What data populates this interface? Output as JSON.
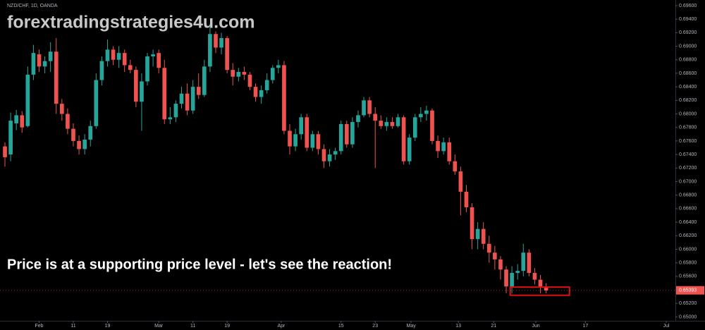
{
  "chart_data": {
    "type": "candlestick",
    "title": "NZD/CHF, 1D, OANDA",
    "watermark": "forextradingstrategies4u.com",
    "annotation": "Price is at a supporting price level  - let's see the reaction!",
    "up_color": "#26a69a",
    "down_color": "#ef5350",
    "open": [
      0.6752,
      0.674,
      0.6786,
      0.6798,
      0.6782,
      0.6858,
      0.6888,
      0.687,
      0.6878,
      0.6892,
      0.6815,
      0.68,
      0.6778,
      0.676,
      0.6748,
      0.6762,
      0.6782,
      0.685,
      0.6878,
      0.6895,
      0.688,
      0.689,
      0.6872,
      0.6865,
      0.6818,
      0.6848,
      0.6885,
      0.689,
      0.6868,
      0.6792,
      0.6795,
      0.6815,
      0.683,
      0.6805,
      0.684,
      0.6828,
      0.687,
      0.6918,
      0.6898,
      0.6912,
      0.6865,
      0.6855,
      0.6862,
      0.6858,
      0.684,
      0.6825,
      0.6835,
      0.685,
      0.6868,
      0.6872,
      0.6775,
      0.6752,
      0.677,
      0.6795,
      0.675,
      0.677,
      0.6748,
      0.673,
      0.674,
      0.6745,
      0.6785,
      0.6755,
      0.6788,
      0.6798,
      0.682,
      0.68,
      0.679,
      0.6782,
      0.6788,
      0.6782,
      0.6795,
      0.673,
      0.6765,
      0.6795,
      0.68,
      0.6805,
      0.676,
      0.6745,
      0.6758,
      0.673,
      0.6715,
      0.6685,
      0.6662,
      0.6615,
      0.663,
      0.6608,
      0.6595,
      0.6585,
      0.657,
      0.6545,
      0.6565,
      0.6568,
      0.6595,
      0.6565,
      0.6555,
      0.6545
    ],
    "high": [
      0.6758,
      0.6802,
      0.6806,
      0.6804,
      0.687,
      0.6902,
      0.6895,
      0.6885,
      0.6906,
      0.6912,
      0.6822,
      0.6808,
      0.6786,
      0.6768,
      0.677,
      0.679,
      0.686,
      0.6885,
      0.691,
      0.69,
      0.69,
      0.6895,
      0.688,
      0.687,
      0.686,
      0.689,
      0.6895,
      0.6895,
      0.688,
      0.681,
      0.682,
      0.684,
      0.6845,
      0.685,
      0.686,
      0.688,
      0.693,
      0.6922,
      0.692,
      0.6915,
      0.6875,
      0.6868,
      0.687,
      0.6862,
      0.6845,
      0.6842,
      0.686,
      0.6872,
      0.688,
      0.6878,
      0.6785,
      0.6778,
      0.68,
      0.68,
      0.6775,
      0.6775,
      0.6755,
      0.6748,
      0.675,
      0.679,
      0.679,
      0.6795,
      0.6805,
      0.6825,
      0.6825,
      0.681,
      0.6798,
      0.6795,
      0.6795,
      0.68,
      0.6798,
      0.677,
      0.68,
      0.681,
      0.6812,
      0.6808,
      0.6768,
      0.6765,
      0.6765,
      0.674,
      0.6722,
      0.6695,
      0.6668,
      0.664,
      0.664,
      0.662,
      0.6605,
      0.659,
      0.6575,
      0.6575,
      0.6578,
      0.6608,
      0.66,
      0.6572,
      0.6562,
      0.655
    ],
    "low": [
      0.6722,
      0.673,
      0.6776,
      0.6772,
      0.678,
      0.685,
      0.6862,
      0.686,
      0.6862,
      0.68,
      0.679,
      0.677,
      0.6752,
      0.674,
      0.674,
      0.6752,
      0.6778,
      0.6842,
      0.687,
      0.6872,
      0.6868,
      0.6862,
      0.686,
      0.681,
      0.6775,
      0.6842,
      0.687,
      0.686,
      0.6785,
      0.6785,
      0.6788,
      0.6808,
      0.6798,
      0.68,
      0.6822,
      0.6825,
      0.6862,
      0.689,
      0.6888,
      0.686,
      0.6842,
      0.6848,
      0.685,
      0.6835,
      0.6818,
      0.6815,
      0.683,
      0.6845,
      0.686,
      0.677,
      0.674,
      0.6745,
      0.6762,
      0.6745,
      0.6745,
      0.674,
      0.672,
      0.6722,
      0.6732,
      0.674,
      0.675,
      0.675,
      0.678,
      0.6795,
      0.6795,
      0.672,
      0.6778,
      0.6775,
      0.6778,
      0.678,
      0.6725,
      0.6725,
      0.676,
      0.6788,
      0.679,
      0.6755,
      0.6735,
      0.674,
      0.6725,
      0.671,
      0.665,
      0.6655,
      0.66,
      0.66,
      0.66,
      0.658,
      0.657,
      0.6555,
      0.6535,
      0.6535,
      0.6555,
      0.656,
      0.656,
      0.6548,
      0.6535,
      0.6535
    ],
    "close": [
      0.6736,
      0.679,
      0.6798,
      0.678,
      0.6858,
      0.689,
      0.687,
      0.6878,
      0.6892,
      0.6815,
      0.68,
      0.6778,
      0.676,
      0.6748,
      0.6762,
      0.6782,
      0.685,
      0.6878,
      0.6895,
      0.688,
      0.689,
      0.6872,
      0.6865,
      0.6818,
      0.6848,
      0.6885,
      0.6888,
      0.6868,
      0.6792,
      0.6795,
      0.6815,
      0.683,
      0.6805,
      0.684,
      0.6828,
      0.687,
      0.6918,
      0.6898,
      0.6912,
      0.6865,
      0.6855,
      0.6862,
      0.6858,
      0.684,
      0.6825,
      0.6835,
      0.685,
      0.6868,
      0.6872,
      0.6775,
      0.6752,
      0.677,
      0.6795,
      0.675,
      0.677,
      0.6748,
      0.673,
      0.674,
      0.6745,
      0.6785,
      0.6755,
      0.6788,
      0.6798,
      0.682,
      0.68,
      0.679,
      0.6782,
      0.6788,
      0.6782,
      0.6795,
      0.673,
      0.6765,
      0.6795,
      0.68,
      0.6805,
      0.676,
      0.6745,
      0.6758,
      0.673,
      0.6715,
      0.6685,
      0.6662,
      0.6615,
      0.663,
      0.6608,
      0.6595,
      0.6585,
      0.657,
      0.6545,
      0.6565,
      0.6568,
      0.6595,
      0.6565,
      0.6555,
      0.6545,
      0.6539
    ],
    "last_price": 0.65393,
    "support_zone": {
      "low": 0.6532,
      "high": 0.6544,
      "x": [
        88.7,
        99.1
      ],
      "color": "#e01010"
    },
    "xlim": [
      -0.87,
      117.7
    ],
    "xticks": [
      {
        "value": 6,
        "label": "Feb"
      },
      {
        "value": 12,
        "label": "11"
      },
      {
        "value": 18,
        "label": "19"
      },
      {
        "value": 27,
        "label": "Mar"
      },
      {
        "value": 33,
        "label": "11"
      },
      {
        "value": 39,
        "label": "19"
      },
      {
        "value": 48.5,
        "label": "Apr"
      },
      {
        "value": 59,
        "label": "15"
      },
      {
        "value": 65,
        "label": "23"
      },
      {
        "value": 71.3,
        "label": "May"
      },
      {
        "value": 79.6,
        "label": "13"
      },
      {
        "value": 85.8,
        "label": "21"
      },
      {
        "value": 93.2,
        "label": "Jun"
      },
      {
        "value": 101.9,
        "label": "17"
      },
      {
        "value": 116.1,
        "label": "Jul"
      }
    ],
    "ylim": [
      0.64942,
      0.69683
    ],
    "yticks": [
      {
        "value": 0.696,
        "label": "0.69600"
      },
      {
        "value": 0.694,
        "label": "0.69400"
      },
      {
        "value": 0.692,
        "label": "0.69200"
      },
      {
        "value": 0.69,
        "label": "0.69000"
      },
      {
        "value": 0.688,
        "label": "0.68800"
      },
      {
        "value": 0.686,
        "label": "0.68600"
      },
      {
        "value": 0.684,
        "label": "0.68400"
      },
      {
        "value": 0.682,
        "label": "0.68200"
      },
      {
        "value": 0.68,
        "label": "0.68000"
      },
      {
        "value": 0.678,
        "label": "0.67800"
      },
      {
        "value": 0.676,
        "label": "0.67600"
      },
      {
        "value": 0.674,
        "label": "0.67400"
      },
      {
        "value": 0.672,
        "label": "0.67200"
      },
      {
        "value": 0.67,
        "label": "0.67000"
      },
      {
        "value": 0.668,
        "label": "0.66800"
      },
      {
        "value": 0.666,
        "label": "0.66600"
      },
      {
        "value": 0.664,
        "label": "0.66400"
      },
      {
        "value": 0.662,
        "label": "0.66200"
      },
      {
        "value": 0.66,
        "label": "0.66000"
      },
      {
        "value": 0.658,
        "label": "0.65800"
      },
      {
        "value": 0.656,
        "label": "0.65600"
      },
      {
        "value": 0.654,
        "label": "0.65400"
      },
      {
        "value": 0.652,
        "label": "0.65200"
      },
      {
        "value": 0.65,
        "label": "0.65000"
      }
    ]
  }
}
